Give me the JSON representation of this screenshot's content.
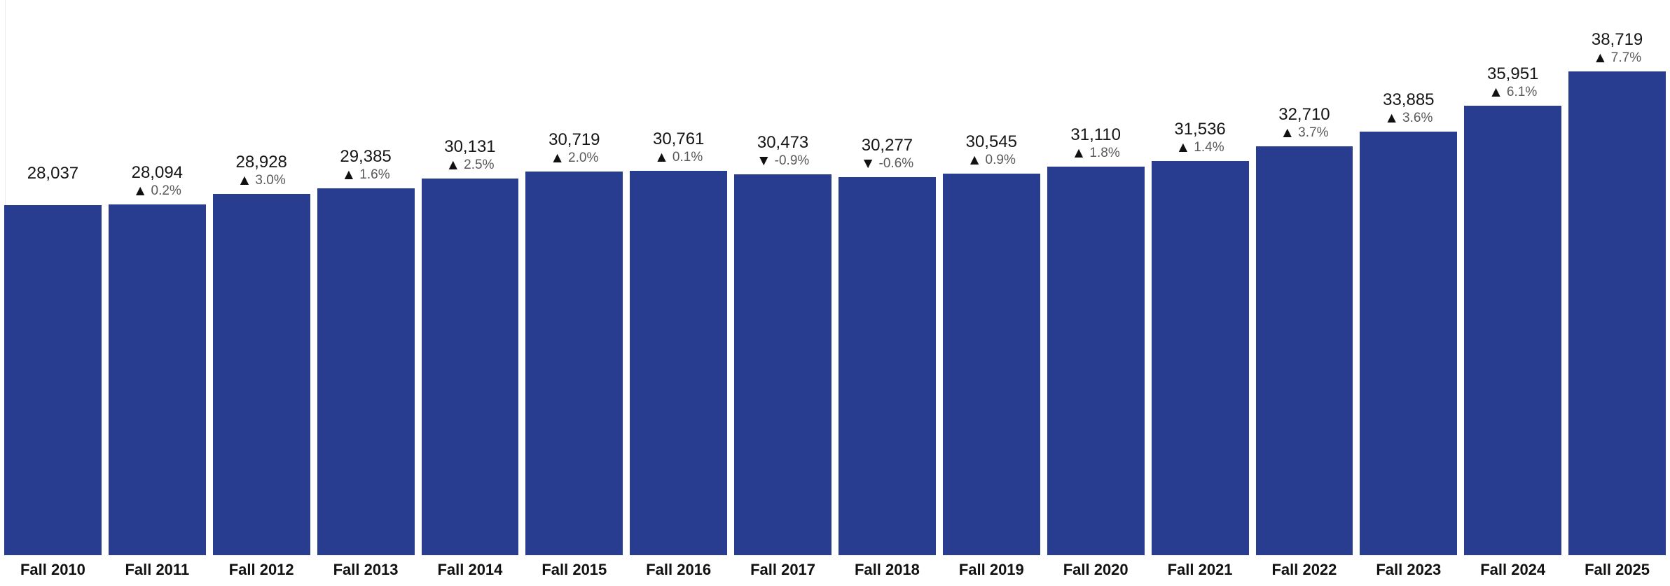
{
  "icons": {
    "up": "▲",
    "down": "▼"
  },
  "chart_data": {
    "type": "bar",
    "title": "",
    "xlabel": "",
    "ylabel": "",
    "categories": [
      "Fall 2010",
      "Fall 2011",
      "Fall 2012",
      "Fall 2013",
      "Fall 2014",
      "Fall 2015",
      "Fall 2016",
      "Fall 2017",
      "Fall 2018",
      "Fall 2019",
      "Fall 2020",
      "Fall 2021",
      "Fall 2022",
      "Fall 2023",
      "Fall 2024",
      "Fall 2025"
    ],
    "values": [
      28037,
      28094,
      28928,
      29385,
      30131,
      30719,
      30761,
      30473,
      30277,
      30545,
      31110,
      31536,
      32710,
      33885,
      35951,
      38719
    ],
    "values_formatted": [
      "28,037",
      "28,094",
      "28,928",
      "29,385",
      "30,131",
      "30,719",
      "30,761",
      "30,473",
      "30,277",
      "30,545",
      "31,110",
      "31,536",
      "32,710",
      "33,885",
      "35,951",
      "38,719"
    ],
    "changes": [
      null,
      {
        "dir": "up",
        "pct": "0.2%"
      },
      {
        "dir": "up",
        "pct": "3.0%"
      },
      {
        "dir": "up",
        "pct": "1.6%"
      },
      {
        "dir": "up",
        "pct": "2.5%"
      },
      {
        "dir": "up",
        "pct": "2.0%"
      },
      {
        "dir": "up",
        "pct": "0.1%"
      },
      {
        "dir": "down",
        "pct": "-0.9%"
      },
      {
        "dir": "down",
        "pct": "-0.6%"
      },
      {
        "dir": "up",
        "pct": "0.9%"
      },
      {
        "dir": "up",
        "pct": "1.8%"
      },
      {
        "dir": "up",
        "pct": "1.4%"
      },
      {
        "dir": "up",
        "pct": "3.7%"
      },
      {
        "dir": "up",
        "pct": "3.6%"
      },
      {
        "dir": "up",
        "pct": "6.1%"
      },
      {
        "dir": "up",
        "pct": "7.7%"
      }
    ],
    "ylim": [
      0,
      42000
    ],
    "grid": false,
    "legend": "none",
    "colors": {
      "bar": "#283d8f",
      "value_label": "#161616",
      "percent_label": "#595959",
      "triangle": "#111111",
      "axis_label": "#111111",
      "background": "#ffffff"
    }
  }
}
